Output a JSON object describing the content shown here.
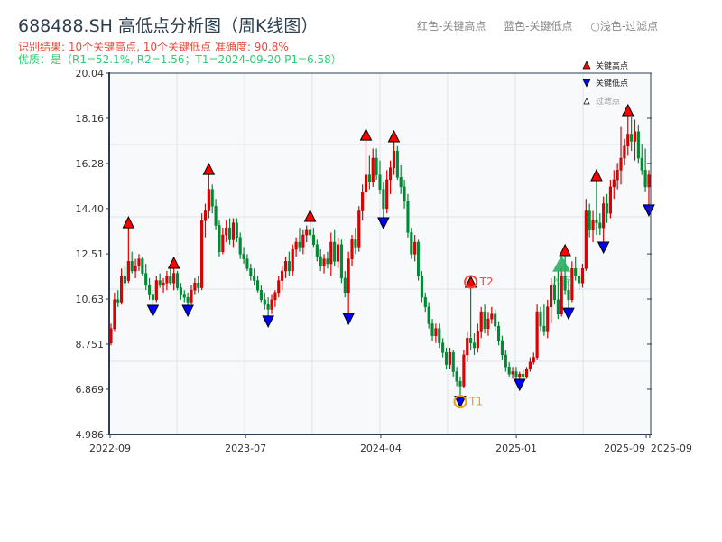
{
  "header": {
    "title": "688488.SH 高低点分析图（周K线图）",
    "result_line": "识别结果: 10个关键高点, 10个关键低点   准确度: 90.8%",
    "quality_line": "优质：是（R1=52.1%, R2=1.56；T1=2024-09-20 P1=6.58）",
    "legend_text": [
      "红色-关键高点",
      "蓝色-关键低点",
      "○浅色-过滤点"
    ]
  },
  "colors": {
    "up": "#e00000",
    "down": "#008a33",
    "high_marker": "#ff0000",
    "low_marker": "#0000ff",
    "t1": "#f39c12",
    "t2": "#e74c3c",
    "entry": "#27ae60",
    "plot_bg": "#f7f9fb",
    "grid": "#dfe3e8"
  },
  "chart_data": {
    "type": "candlestick",
    "title": "688488.SH 高低点分析图（周K线图）",
    "ylim": [
      4.986,
      20.04
    ],
    "yticks": [
      "20.04",
      "18.16",
      "16.28",
      "14.40",
      "12.51",
      "10.63",
      "8.751",
      "6.869",
      "4.986"
    ],
    "xticks": [
      {
        "label": "2022-09",
        "at": 0
      },
      {
        "label": "2023-07",
        "at": 38.8
      },
      {
        "label": "2024-04",
        "at": 77.5
      },
      {
        "label": "2025-01",
        "at": 116.3
      },
      {
        "label": "2025-09",
        "at": 153.5
      },
      {
        "label": "2025-09",
        "at": 154.5
      }
    ],
    "grid": true,
    "legend": {
      "position": "top-right",
      "items": [
        "关键高点",
        "关键低点",
        "过滤点"
      ]
    },
    "candles_ohlc": [
      [
        8.8,
        9.6,
        8.7,
        9.4
      ],
      [
        9.4,
        10.9,
        9.3,
        10.6
      ],
      [
        10.6,
        11.0,
        10.3,
        10.5
      ],
      [
        10.5,
        11.9,
        10.4,
        11.6
      ],
      [
        11.6,
        12.0,
        11.1,
        11.3
      ],
      [
        11.4,
        13.6,
        11.3,
        12.2
      ],
      [
        12.2,
        12.6,
        11.7,
        11.8
      ],
      [
        11.8,
        12.3,
        11.5,
        12.0
      ],
      [
        12.0,
        12.5,
        11.8,
        12.3
      ],
      [
        12.3,
        12.4,
        11.6,
        11.7
      ],
      [
        11.7,
        12.1,
        11.0,
        11.2
      ],
      [
        11.2,
        11.5,
        10.6,
        10.8
      ],
      [
        10.8,
        11.0,
        10.37,
        10.6
      ],
      [
        10.6,
        11.6,
        10.5,
        11.4
      ],
      [
        11.4,
        11.7,
        11.1,
        11.2
      ],
      [
        11.2,
        11.5,
        10.9,
        11.3
      ],
      [
        11.3,
        11.8,
        11.0,
        11.6
      ],
      [
        11.6,
        11.9,
        11.2,
        11.3
      ],
      [
        11.3,
        11.91,
        11.0,
        11.7
      ],
      [
        11.7,
        11.8,
        11.0,
        11.1
      ],
      [
        11.1,
        11.3,
        10.6,
        10.8
      ],
      [
        10.8,
        11.0,
        10.5,
        10.7
      ],
      [
        10.7,
        10.9,
        10.37,
        10.5
      ],
      [
        10.5,
        11.2,
        10.4,
        11.0
      ],
      [
        11.0,
        11.5,
        10.8,
        11.3
      ],
      [
        11.3,
        11.6,
        10.9,
        11.1
      ],
      [
        11.1,
        14.2,
        11.0,
        13.9
      ],
      [
        13.9,
        14.6,
        13.2,
        14.3
      ],
      [
        14.3,
        15.82,
        14.0,
        15.2
      ],
      [
        15.2,
        15.4,
        14.2,
        14.5
      ],
      [
        14.5,
        14.8,
        13.5,
        13.7
      ],
      [
        13.7,
        13.9,
        12.4,
        12.6
      ],
      [
        12.6,
        13.6,
        12.5,
        13.3
      ],
      [
        13.3,
        13.9,
        13.0,
        13.6
      ],
      [
        13.6,
        14.0,
        12.9,
        13.1
      ],
      [
        13.1,
        14.0,
        12.8,
        13.8
      ],
      [
        13.8,
        14.0,
        13.0,
        13.2
      ],
      [
        13.2,
        13.4,
        12.3,
        12.5
      ],
      [
        12.5,
        12.8,
        12.1,
        12.3
      ],
      [
        12.3,
        12.5,
        11.8,
        11.9
      ],
      [
        11.9,
        12.1,
        11.4,
        11.6
      ],
      [
        11.6,
        11.9,
        11.2,
        11.4
      ],
      [
        11.4,
        11.6,
        10.9,
        11.0
      ],
      [
        11.0,
        11.2,
        10.5,
        10.6
      ],
      [
        10.6,
        10.9,
        10.2,
        10.4
      ],
      [
        10.4,
        10.7,
        9.92,
        10.2
      ],
      [
        10.2,
        10.8,
        10.0,
        10.6
      ],
      [
        10.6,
        11.0,
        10.3,
        10.9
      ],
      [
        10.9,
        11.6,
        10.7,
        11.4
      ],
      [
        11.4,
        12.0,
        11.0,
        11.8
      ],
      [
        11.8,
        12.4,
        11.5,
        12.2
      ],
      [
        12.2,
        12.6,
        11.6,
        11.8
      ],
      [
        11.8,
        12.9,
        11.6,
        12.7
      ],
      [
        12.7,
        13.2,
        12.4,
        13.0
      ],
      [
        13.0,
        13.6,
        12.6,
        12.8
      ],
      [
        12.8,
        13.5,
        12.5,
        13.3
      ],
      [
        13.3,
        13.7,
        13.0,
        13.5
      ],
      [
        13.5,
        13.87,
        13.1,
        13.3
      ],
      [
        13.3,
        13.6,
        12.8,
        12.9
      ],
      [
        12.9,
        13.1,
        12.2,
        12.4
      ],
      [
        12.4,
        12.7,
        11.8,
        12.0
      ],
      [
        12.0,
        12.5,
        11.7,
        12.3
      ],
      [
        12.3,
        12.6,
        11.9,
        12.1
      ],
      [
        12.1,
        13.4,
        11.6,
        13.0
      ],
      [
        13.0,
        13.5,
        12.0,
        12.2
      ],
      [
        12.2,
        13.2,
        11.9,
        12.9
      ],
      [
        12.9,
        13.1,
        11.3,
        11.5
      ],
      [
        11.5,
        11.8,
        10.7,
        10.9
      ],
      [
        10.9,
        12.6,
        10.03,
        12.3
      ],
      [
        12.3,
        13.3,
        12.0,
        13.1
      ],
      [
        13.1,
        13.6,
        12.5,
        12.8
      ],
      [
        12.8,
        14.5,
        12.6,
        14.3
      ],
      [
        14.3,
        15.4,
        13.9,
        15.1
      ],
      [
        15.1,
        17.25,
        14.8,
        15.8
      ],
      [
        15.8,
        16.6,
        15.2,
        15.5
      ],
      [
        15.5,
        16.9,
        15.3,
        16.5
      ],
      [
        16.5,
        16.9,
        15.6,
        15.8
      ],
      [
        15.8,
        16.4,
        15.0,
        15.2
      ],
      [
        15.2,
        15.5,
        14.02,
        14.4
      ],
      [
        14.4,
        16.0,
        14.2,
        15.6
      ],
      [
        15.6,
        16.4,
        15.0,
        16.1
      ],
      [
        16.1,
        17.18,
        15.8,
        16.8
      ],
      [
        16.8,
        17.0,
        15.6,
        15.7
      ],
      [
        15.7,
        16.2,
        15.0,
        15.3
      ],
      [
        15.3,
        15.6,
        14.4,
        14.7
      ],
      [
        14.7,
        15.0,
        13.2,
        13.4
      ],
      [
        13.4,
        13.6,
        12.3,
        12.5
      ],
      [
        12.5,
        13.3,
        12.2,
        13.0
      ],
      [
        13.0,
        13.1,
        11.4,
        11.6
      ],
      [
        11.6,
        11.8,
        10.5,
        10.7
      ],
      [
        10.7,
        10.9,
        10.1,
        10.3
      ],
      [
        10.3,
        10.5,
        9.4,
        9.6
      ],
      [
        9.6,
        9.8,
        8.9,
        9.1
      ],
      [
        9.1,
        9.6,
        8.8,
        9.4
      ],
      [
        9.4,
        9.6,
        8.6,
        8.8
      ],
      [
        8.8,
        9.0,
        8.2,
        8.4
      ],
      [
        8.4,
        8.6,
        7.7,
        7.9
      ],
      [
        7.9,
        8.6,
        7.7,
        8.4
      ],
      [
        8.4,
        8.5,
        7.4,
        7.6
      ],
      [
        7.6,
        7.8,
        7.0,
        7.2
      ],
      [
        7.2,
        7.4,
        6.58,
        7.0
      ],
      [
        7.0,
        8.5,
        6.9,
        8.3
      ],
      [
        8.3,
        9.3,
        8.0,
        9.0
      ],
      [
        9.0,
        11.12,
        8.5,
        8.8
      ],
      [
        8.8,
        9.2,
        8.3,
        8.6
      ],
      [
        8.6,
        9.6,
        8.4,
        9.3
      ],
      [
        9.3,
        10.3,
        9.0,
        10.1
      ],
      [
        10.1,
        10.4,
        9.2,
        9.4
      ],
      [
        9.4,
        10.1,
        9.1,
        9.8
      ],
      [
        9.8,
        10.3,
        9.6,
        10.0
      ],
      [
        10.0,
        10.2,
        9.3,
        9.5
      ],
      [
        9.5,
        9.7,
        8.7,
        8.9
      ],
      [
        8.9,
        9.1,
        8.1,
        8.3
      ],
      [
        8.3,
        8.5,
        7.6,
        7.8
      ],
      [
        7.8,
        8.0,
        7.4,
        7.5
      ],
      [
        7.5,
        7.8,
        7.3,
        7.6
      ],
      [
        7.6,
        7.8,
        7.3,
        7.4
      ],
      [
        7.4,
        7.6,
        7.28,
        7.5
      ],
      [
        7.5,
        7.7,
        7.3,
        7.4
      ],
      [
        7.4,
        7.8,
        7.3,
        7.7
      ],
      [
        7.7,
        8.2,
        7.6,
        8.0
      ],
      [
        8.0,
        8.4,
        7.9,
        8.2
      ],
      [
        8.2,
        10.4,
        8.1,
        10.1
      ],
      [
        10.1,
        10.3,
        9.3,
        9.5
      ],
      [
        9.5,
        10.4,
        9.1,
        9.3
      ],
      [
        9.3,
        10.6,
        9.0,
        10.3
      ],
      [
        10.3,
        11.5,
        9.6,
        11.2
      ],
      [
        11.2,
        11.6,
        10.4,
        10.6
      ],
      [
        10.6,
        11.8,
        9.8,
        10.0
      ],
      [
        10.0,
        12.0,
        9.9,
        11.6
      ],
      [
        11.6,
        12.44,
        10.8,
        11.0
      ],
      [
        11.0,
        11.4,
        10.25,
        10.6
      ],
      [
        10.6,
        12.2,
        10.5,
        11.9
      ],
      [
        11.9,
        12.4,
        11.4,
        11.6
      ],
      [
        11.6,
        11.9,
        11.0,
        11.3
      ],
      [
        11.3,
        12.1,
        11.1,
        11.9
      ],
      [
        11.9,
        14.8,
        11.8,
        14.3
      ],
      [
        14.3,
        14.6,
        13.2,
        13.5
      ],
      [
        13.5,
        14.3,
        13.0,
        13.9
      ],
      [
        13.9,
        15.56,
        13.3,
        13.8
      ],
      [
        13.8,
        14.2,
        13.3,
        13.6
      ],
      [
        13.6,
        14.9,
        13.0,
        14.6
      ],
      [
        14.6,
        15.0,
        13.8,
        14.2
      ],
      [
        14.2,
        15.6,
        14.0,
        15.3
      ],
      [
        15.3,
        16.0,
        14.8,
        15.6
      ],
      [
        15.6,
        16.3,
        15.2,
        16.0
      ],
      [
        16.0,
        17.8,
        15.4,
        16.5
      ],
      [
        16.5,
        17.3,
        16.2,
        17.0
      ],
      [
        17.0,
        18.27,
        16.6,
        17.5
      ],
      [
        17.5,
        18.2,
        16.8,
        17.2
      ],
      [
        17.2,
        18.1,
        16.4,
        17.6
      ],
      [
        17.6,
        17.9,
        16.3,
        16.5
      ],
      [
        16.5,
        17.1,
        15.8,
        16.0
      ],
      [
        16.0,
        16.9,
        15.1,
        15.3
      ],
      [
        15.3,
        16.0,
        14.55,
        15.8
      ]
    ],
    "key_highs": [
      {
        "at": 5,
        "price": 13.6
      },
      {
        "at": 18,
        "price": 11.91
      },
      {
        "at": 28,
        "price": 15.82
      },
      {
        "at": 57,
        "price": 13.87
      },
      {
        "at": 73,
        "price": 17.25
      },
      {
        "at": 81,
        "price": 17.18
      },
      {
        "at": 103,
        "price": 11.12
      },
      {
        "at": 130,
        "price": 12.44
      },
      {
        "at": 139,
        "price": 15.56
      },
      {
        "at": 148,
        "price": 18.27
      }
    ],
    "key_lows": [
      {
        "at": 12,
        "price": 10.37
      },
      {
        "at": 22,
        "price": 10.37
      },
      {
        "at": 45,
        "price": 9.92
      },
      {
        "at": 68,
        "price": 10.03
      },
      {
        "at": 78,
        "price": 14.02
      },
      {
        "at": 100,
        "price": 6.58
      },
      {
        "at": 117,
        "price": 7.28
      },
      {
        "at": 131,
        "price": 10.25
      },
      {
        "at": 141,
        "price": 13.0
      },
      {
        "at": 154,
        "price": 14.55
      }
    ],
    "annotations": [
      {
        "label": "T1",
        "at": 100,
        "price": 6.58,
        "kind": "low"
      },
      {
        "label": "T2",
        "at": 103,
        "price": 11.12,
        "kind": "high"
      },
      {
        "label": "入场",
        "at": 129,
        "price": 12.0,
        "kind": "entry"
      }
    ]
  }
}
